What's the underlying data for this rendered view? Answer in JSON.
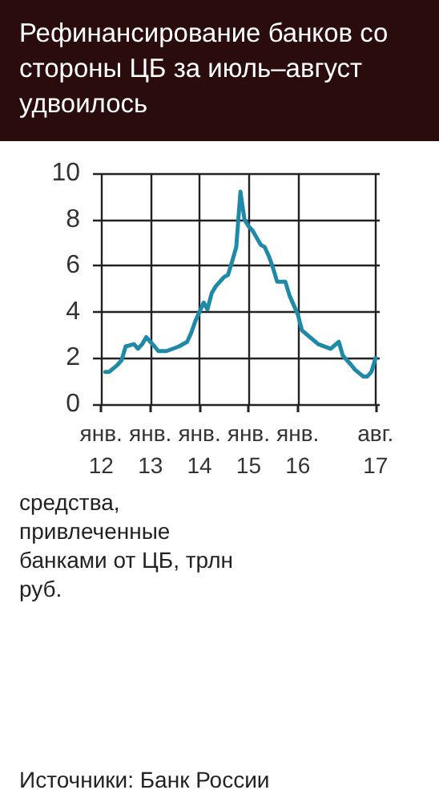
{
  "chart_data": {
    "type": "line",
    "title": "Рефинансирование банков со стороны ЦБ за июль–август удвоилось",
    "annotations": [
      "средства, привлеченные банками от ЦБ, трлн руб.",
      "Источники: Банк России"
    ],
    "x": [
      "2012-02",
      "2012-03",
      "2012-05",
      "2012-06",
      "2012-07",
      "2012-09",
      "2012-10",
      "2012-11",
      "2012-12",
      "2013-02",
      "2013-03",
      "2013-05",
      "2013-08",
      "2013-10",
      "2013-11",
      "2013-12",
      "2014-02",
      "2014-03",
      "2014-04",
      "2014-05",
      "2014-07",
      "2014-08",
      "2014-09",
      "2014-10",
      "2014-11",
      "2014-12",
      "2015-01",
      "2015-02",
      "2015-04",
      "2015-05",
      "2015-06",
      "2015-07",
      "2015-08",
      "2015-10",
      "2015-11",
      "2016-01",
      "2016-02",
      "2016-04",
      "2016-06",
      "2016-09",
      "2016-11",
      "2016-12",
      "2017-02",
      "2017-03",
      "2017-05",
      "2017-06",
      "2017-07",
      "2017-08"
    ],
    "series": [
      {
        "color": "#1e8aa8",
        "values": [
          1.4,
          1.4,
          1.7,
          1.9,
          2.5,
          2.6,
          2.4,
          2.6,
          2.9,
          2.5,
          2.3,
          2.3,
          2.5,
          2.7,
          3.1,
          3.6,
          4.4,
          4.1,
          4.8,
          5.1,
          5.5,
          5.6,
          6.2,
          6.8,
          9.2,
          8.0,
          7.7,
          7.5,
          6.9,
          6.8,
          6.4,
          5.9,
          5.3,
          5.3,
          4.7,
          3.9,
          3.2,
          2.9,
          2.6,
          2.4,
          2.7,
          2.1,
          1.7,
          1.5,
          1.2,
          1.2,
          1.4,
          2.0
        ]
      }
    ],
    "xlim": [
      "2011-11",
      "2017-09"
    ],
    "xticks": [
      {
        "value": "2012-01",
        "label": "янв.\n12"
      },
      {
        "value": "2013-01",
        "label": "янв.\n13"
      },
      {
        "value": "2014-01",
        "label": "янв.\n14"
      },
      {
        "value": "2015-01",
        "label": "янв.\n15"
      },
      {
        "value": "2016-01",
        "label": "янв.\n16"
      },
      {
        "value": "2017-08",
        "label": "авг.\n17"
      }
    ],
    "ylim": [
      0,
      10
    ],
    "yticks": [
      0,
      2,
      4,
      6,
      8,
      10
    ],
    "grid": true,
    "marker": "none",
    "line_style": "solid"
  }
}
